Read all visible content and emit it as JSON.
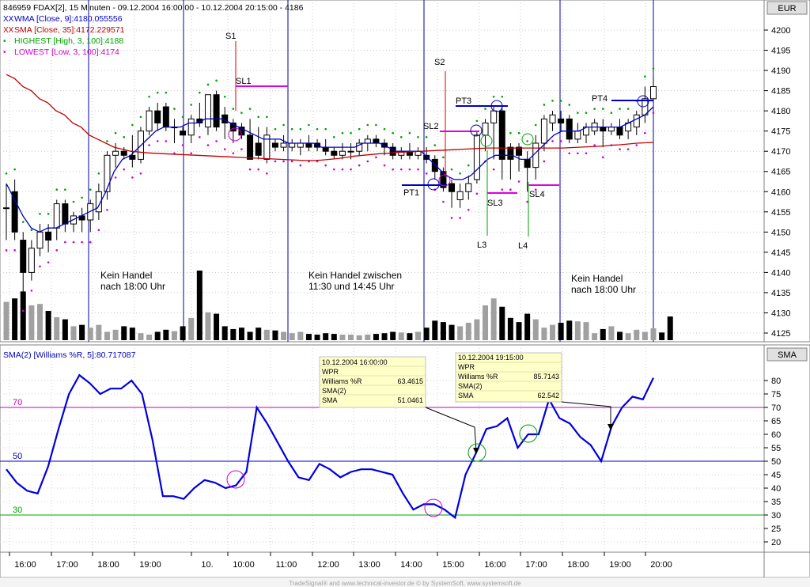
{
  "price_panel": {
    "header": "846959  FDAX[2], 15 Minuten - 09.12.2004 16:00:00 - 10.12.2004 20:15:00 - 4186",
    "currency": "EUR",
    "legend": [
      {
        "text": "WMA [Close, 9]:4180.055556",
        "color": "#0000c0"
      },
      {
        "text": "SMA [Close, 35]:4172.229571",
        "color": "#c00000"
      },
      {
        "text": "HIGHEST [High, 3, 100]:4188",
        "color": "#00a000"
      },
      {
        "text": "LOWEST [Low, 3, 100]:4174",
        "color": "#d000d0"
      }
    ],
    "y_ticks": [
      "4200",
      "4195",
      "4190",
      "4185",
      "4180",
      "4175",
      "4170",
      "4165",
      "4160",
      "4155",
      "4150",
      "4145",
      "4140",
      "4135",
      "4130",
      "4125"
    ],
    "annotations": {
      "S1": "S1",
      "SL1": "SL1",
      "S2": "S2",
      "SL2": "SL2",
      "PT3": "PT3",
      "PT1": "PT1",
      "SL3": "SL3",
      "SL4": "SL4",
      "L3": "L3",
      "L4": "L4",
      "PT4": "PT4"
    },
    "notes": {
      "n1a": "Kein Handel",
      "n1b": "nach 18:00 Uhr",
      "n2a": "Kein Handel zwischen",
      "n2b": "11:30 und 14:45 Uhr",
      "n3a": "Kein Handel",
      "n3b": "nach 18:00 Uhr"
    }
  },
  "indicator_panel": {
    "legend": "SMA(2) [Williams %R, 5]:80.717087",
    "label": "SMA",
    "y_ticks": [
      "80",
      "75",
      "70",
      "65",
      "60",
      "55",
      "50",
      "45",
      "40",
      "35",
      "30",
      "25",
      "20"
    ],
    "levels": {
      "l70": "70",
      "l50": "50",
      "l30": "30"
    },
    "tooltip1": {
      "date": "10.12.2004 16:00:00",
      "r1": "WPR",
      "r2k": "Williams %R",
      "r2v": "63.4615",
      "r3": "SMA(2)",
      "r4k": "SMA",
      "r4v": "51.0461"
    },
    "tooltip2": {
      "date": "10.12.2004 19:15:00",
      "r1": "WPR",
      "r2k": "Williams %R",
      "r2v": "85.7143",
      "r3": "SMA(2)",
      "r4k": "SMA",
      "r4v": "62.542"
    }
  },
  "x_ticks": [
    "16:00",
    "17:00",
    "18:00",
    "19:00",
    "10.",
    "10:00",
    "11:00",
    "12:00",
    "13:00",
    "14:00",
    "15:00",
    "16:00",
    "17:00",
    "18:00",
    "19:00",
    "20:00"
  ],
  "footer": "TradeSignal® and www.technical-investor.de © by  SystemSoft, www.systemsoft.de",
  "colors": {
    "wma": "#0000c0",
    "sma": "#c00000",
    "highest": "#00a000",
    "lowest": "#d000d0",
    "indicator": "#0000dd"
  },
  "chart_data": [
    {
      "type": "candlestick",
      "title": "846959  FDAX[2], 15 Minuten - 09.12.2004 16:00:00 - 10.12.2004 20:15:00 - 4186",
      "ylim": [
        4122,
        4204
      ],
      "candles": [
        {
          "o": 4156,
          "h": 4162,
          "l": 4148,
          "c": 4156
        },
        {
          "o": 4160,
          "h": 4163,
          "l": 4148,
          "c": 4150
        },
        {
          "o": 4148,
          "h": 4150,
          "l": 4133,
          "c": 4140
        },
        {
          "o": 4140,
          "h": 4148,
          "l": 4138,
          "c": 4146
        },
        {
          "o": 4146,
          "h": 4152,
          "l": 4144,
          "c": 4150
        },
        {
          "o": 4150,
          "h": 4152,
          "l": 4145,
          "c": 4148
        },
        {
          "o": 4151,
          "h": 4158,
          "l": 4148,
          "c": 4157
        },
        {
          "o": 4157,
          "h": 4158,
          "l": 4150,
          "c": 4152
        },
        {
          "o": 4152,
          "h": 4155,
          "l": 4150,
          "c": 4154
        },
        {
          "o": 4154,
          "h": 4156,
          "l": 4150,
          "c": 4153
        },
        {
          "o": 4153,
          "h": 4158,
          "l": 4150,
          "c": 4157
        },
        {
          "o": 4155,
          "h": 4162,
          "l": 4153,
          "c": 4160
        },
        {
          "o": 4160,
          "h": 4170,
          "l": 4158,
          "c": 4169
        },
        {
          "o": 4169,
          "h": 4172,
          "l": 4166,
          "c": 4170
        },
        {
          "o": 4170,
          "h": 4171,
          "l": 4168,
          "c": 4169
        },
        {
          "o": 4169,
          "h": 4174,
          "l": 4166,
          "c": 4168
        },
        {
          "o": 4168,
          "h": 4176,
          "l": 4167,
          "c": 4175
        },
        {
          "o": 4175,
          "h": 4181,
          "l": 4174,
          "c": 4180
        },
        {
          "o": 4180,
          "h": 4182,
          "l": 4175,
          "c": 4177
        },
        {
          "o": 4181,
          "h": 4182,
          "l": 4175,
          "c": 4176
        },
        {
          "o": 4176,
          "h": 4178,
          "l": 4172,
          "c": 4176
        },
        {
          "o": 4175,
          "h": 4176,
          "l": 4174,
          "c": 4174
        },
        {
          "o": 4174,
          "h": 4179,
          "l": 4172,
          "c": 4178
        },
        {
          "o": 4178,
          "h": 4182,
          "l": 4176,
          "c": 4177
        },
        {
          "o": 4176,
          "h": 4184,
          "l": 4174,
          "c": 4184
        },
        {
          "o": 4184,
          "h": 4185,
          "l": 4175,
          "c": 4176
        },
        {
          "o": 4179,
          "h": 4181,
          "l": 4173,
          "c": 4177
        },
        {
          "o": 4177,
          "h": 4178,
          "l": 4172,
          "c": 4175
        },
        {
          "o": 4176,
          "h": 4177,
          "l": 4173,
          "c": 4174
        },
        {
          "o": 4174,
          "h": 4178,
          "l": 4168,
          "c": 4168
        },
        {
          "o": 4172,
          "h": 4176,
          "l": 4168,
          "c": 4169
        },
        {
          "o": 4168,
          "h": 4176,
          "l": 4167,
          "c": 4174
        },
        {
          "o": 4172,
          "h": 4173,
          "l": 4170,
          "c": 4171
        },
        {
          "o": 4171,
          "h": 4174,
          "l": 4170,
          "c": 4172
        },
        {
          "o": 4171,
          "h": 4173,
          "l": 4170,
          "c": 4172
        },
        {
          "o": 4171,
          "h": 4173,
          "l": 4169,
          "c": 4172
        },
        {
          "o": 4172,
          "h": 4174,
          "l": 4170,
          "c": 4171
        },
        {
          "o": 4172,
          "h": 4173,
          "l": 4170,
          "c": 4171
        },
        {
          "o": 4171,
          "h": 4173,
          "l": 4169,
          "c": 4170
        },
        {
          "o": 4170,
          "h": 4171,
          "l": 4168,
          "c": 4169
        },
        {
          "o": 4169,
          "h": 4172,
          "l": 4168,
          "c": 4170
        },
        {
          "o": 4170,
          "h": 4172,
          "l": 4168,
          "c": 4170
        },
        {
          "o": 4170,
          "h": 4173,
          "l": 4169,
          "c": 4172
        },
        {
          "o": 4172,
          "h": 4174,
          "l": 4170,
          "c": 4173
        },
        {
          "o": 4173,
          "h": 4174,
          "l": 4171,
          "c": 4172
        },
        {
          "o": 4172,
          "h": 4173,
          "l": 4169,
          "c": 4171
        },
        {
          "o": 4171,
          "h": 4172,
          "l": 4168,
          "c": 4169
        },
        {
          "o": 4169,
          "h": 4171,
          "l": 4168,
          "c": 4170
        },
        {
          "o": 4170,
          "h": 4172,
          "l": 4168,
          "c": 4169
        },
        {
          "o": 4169,
          "h": 4171,
          "l": 4168,
          "c": 4170
        },
        {
          "o": 4169,
          "h": 4171,
          "l": 4167,
          "c": 4168
        },
        {
          "o": 4168,
          "h": 4169,
          "l": 4163,
          "c": 4165
        },
        {
          "o": 4165,
          "h": 4166,
          "l": 4160,
          "c": 4161
        },
        {
          "o": 4162,
          "h": 4163,
          "l": 4156,
          "c": 4160
        },
        {
          "o": 4158,
          "h": 4162,
          "l": 4156,
          "c": 4160
        },
        {
          "o": 4160,
          "h": 4164,
          "l": 4158,
          "c": 4162
        },
        {
          "o": 4163,
          "h": 4175,
          "l": 4162,
          "c": 4174
        },
        {
          "o": 4174,
          "h": 4178,
          "l": 4170,
          "c": 4177
        },
        {
          "o": 4177,
          "h": 4181,
          "l": 4168,
          "c": 4180
        },
        {
          "o": 4180,
          "h": 4181,
          "l": 4163,
          "c": 4168
        },
        {
          "o": 4171,
          "h": 4172,
          "l": 4163,
          "c": 4168
        },
        {
          "o": 4171,
          "h": 4172,
          "l": 4165,
          "c": 4169
        },
        {
          "o": 4168,
          "h": 4170,
          "l": 4160,
          "c": 4166
        },
        {
          "o": 4166,
          "h": 4174,
          "l": 4163,
          "c": 4172
        },
        {
          "o": 4172,
          "h": 4179,
          "l": 4170,
          "c": 4178
        },
        {
          "o": 4177,
          "h": 4180,
          "l": 4175,
          "c": 4179
        },
        {
          "o": 4178,
          "h": 4180,
          "l": 4175,
          "c": 4177
        },
        {
          "o": 4178,
          "h": 4179,
          "l": 4172,
          "c": 4173
        },
        {
          "o": 4173,
          "h": 4177,
          "l": 4172,
          "c": 4175
        },
        {
          "o": 4174,
          "h": 4177,
          "l": 4172,
          "c": 4176
        },
        {
          "o": 4175,
          "h": 4178,
          "l": 4174,
          "c": 4177
        },
        {
          "o": 4176,
          "h": 4178,
          "l": 4171,
          "c": 4175
        },
        {
          "o": 4175,
          "h": 4177,
          "l": 4174,
          "c": 4176
        },
        {
          "o": 4176,
          "h": 4178,
          "l": 4173,
          "c": 4174
        },
        {
          "o": 4175,
          "h": 4178,
          "l": 4173,
          "c": 4177
        },
        {
          "o": 4176,
          "h": 4180,
          "l": 4174,
          "c": 4179
        },
        {
          "o": 4179,
          "h": 4186,
          "l": 4177,
          "c": 4183
        },
        {
          "o": 4183,
          "h": 4188,
          "l": 4182,
          "c": 4186
        }
      ],
      "volume_relative": [
        0.55,
        0.6,
        0.7,
        0.5,
        0.52,
        0.42,
        0.33,
        0.3,
        0.2,
        0.22,
        0.18,
        0.22,
        0.12,
        0.15,
        0.2,
        0.18,
        0.1,
        0.08,
        0.12,
        0.15,
        0.13,
        0.2,
        0.32,
        1.0,
        0.4,
        0.38,
        0.2,
        0.16,
        0.18,
        0.12,
        0.18,
        0.15,
        0.14,
        0.12,
        0.1,
        0.12,
        0.09,
        0.08,
        0.1,
        0.09,
        0.08,
        0.08,
        0.07,
        0.08,
        0.09,
        0.1,
        0.12,
        0.11,
        0.1,
        0.12,
        0.18,
        0.28,
        0.26,
        0.22,
        0.2,
        0.25,
        0.3,
        0.5,
        0.6,
        0.48,
        0.32,
        0.26,
        0.38,
        0.3,
        0.18,
        0.22,
        0.25,
        0.28,
        0.27,
        0.26,
        0.1,
        0.16,
        0.2,
        0.12,
        0.1,
        0.15,
        0.12,
        0.17,
        0.11,
        0.34
      ],
      "series": [
        {
          "name": "WMA [Close, 9]:4180.055556",
          "values": [
            4162,
            4158,
            4154,
            4151,
            4150,
            4151,
            4151,
            4152,
            4153,
            4154,
            4155,
            4156,
            4160,
            4165,
            4168,
            4169,
            4171,
            4173,
            4175,
            4176,
            4176,
            4176,
            4177,
            4177,
            4178,
            4178,
            4178,
            4177,
            4176,
            4175,
            4174,
            4173,
            4173,
            4173,
            4172,
            4172,
            4172,
            4172,
            4171,
            4171,
            4171,
            4171,
            4171,
            4172,
            4172,
            4172,
            4171,
            4170,
            4170,
            4170,
            4170,
            4168,
            4166,
            4164,
            4163,
            4163,
            4164,
            4166,
            4168,
            4169,
            4169,
            4169,
            4168,
            4168,
            4170,
            4172,
            4174,
            4175,
            4175,
            4175,
            4176,
            4176,
            4176,
            4176,
            4176,
            4177,
            4178,
            4179,
            4181
          ]
        },
        {
          "name": "SMA [Close, 35]:4172.229571",
          "values": [
            4189,
            4188,
            4186,
            4185,
            4183,
            4182,
            4180,
            4179,
            4177,
            4176,
            4174,
            4173,
            4172,
            4171,
            4170.5,
            4170,
            4169.8,
            4169.6,
            4169.5,
            4169.4,
            4169.3,
            4169.2,
            4169.1,
            4169,
            4168.9,
            4168.8,
            4168.7,
            4168.6,
            4168.5,
            4168.4,
            4168.3,
            4168.2,
            4168.1,
            4168,
            4167.9,
            4167.8,
            4167.7,
            4167.7,
            4167.8,
            4168,
            4168.2,
            4168.5,
            4168.8,
            4169,
            4169.2,
            4169.4,
            4169.5,
            4169.7,
            4169.8,
            4169.9,
            4170,
            4170.1,
            4170.2,
            4170.3,
            4170.4,
            4170.5,
            4170.6,
            4170.7,
            4170.8,
            4170.8,
            4170.8,
            4170.8,
            4170.8,
            4170.8,
            4170.8,
            4170.8,
            4170.8,
            4170.8,
            4170.9,
            4171,
            4171.1,
            4171.2,
            4171.3,
            4171.5,
            4171.6,
            4171.8,
            4172,
            4172.1,
            4172.2
          ]
        }
      ]
    },
    {
      "type": "line",
      "title": "SMA(2) [Williams %R, 5]:80.717087",
      "ylim": [
        17,
        88
      ],
      "levels": [
        70,
        50,
        30
      ],
      "series": [
        {
          "name": "SMA(2) [Williams %R, 5]:80.717087",
          "values": [
            47,
            42,
            39,
            38,
            48,
            62,
            75,
            82,
            79,
            75,
            77,
            77,
            80,
            75,
            58,
            37,
            37,
            36,
            40,
            43,
            42,
            40,
            41,
            46,
            70,
            64,
            57,
            50,
            44,
            43,
            49,
            47,
            44,
            46,
            47,
            47,
            46,
            45,
            38,
            32,
            34,
            34,
            32,
            29,
            45,
            53,
            62,
            63,
            66,
            55,
            60,
            60,
            73,
            66,
            64,
            59,
            56,
            50,
            63,
            70,
            74,
            73,
            81
          ]
        }
      ]
    }
  ]
}
